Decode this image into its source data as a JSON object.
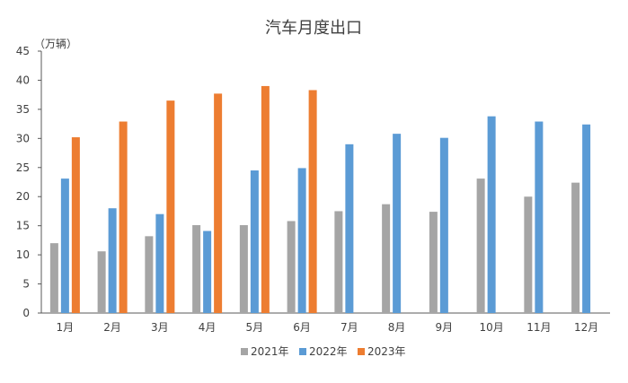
{
  "chart_data": {
    "type": "bar",
    "title": "汽车月度出口",
    "ylabel": "（万辆）",
    "xlabel": "",
    "ylim": [
      0,
      45
    ],
    "yticks": [
      0,
      5,
      10,
      15,
      20,
      25,
      30,
      35,
      40,
      45
    ],
    "grid": false,
    "legend_position": "bottom",
    "categories": [
      "1月",
      "2月",
      "3月",
      "4月",
      "5月",
      "6月",
      "7月",
      "8月",
      "9月",
      "10月",
      "11月",
      "12月"
    ],
    "series": [
      {
        "name": "2021年",
        "color": "#a5a5a5",
        "values": [
          12.0,
          10.6,
          13.2,
          15.1,
          15.1,
          15.8,
          17.5,
          18.7,
          17.4,
          23.1,
          20.0,
          22.4
        ]
      },
      {
        "name": "2022年",
        "color": "#5b9bd5",
        "values": [
          23.1,
          18.0,
          17.0,
          14.1,
          24.5,
          24.9,
          29.0,
          30.8,
          30.1,
          33.8,
          32.9,
          32.4
        ]
      },
      {
        "name": "2023年",
        "color": "#ed7d31",
        "values": [
          30.2,
          32.9,
          36.5,
          37.7,
          39.0,
          38.3,
          null,
          null,
          null,
          null,
          null,
          null
        ]
      }
    ]
  }
}
